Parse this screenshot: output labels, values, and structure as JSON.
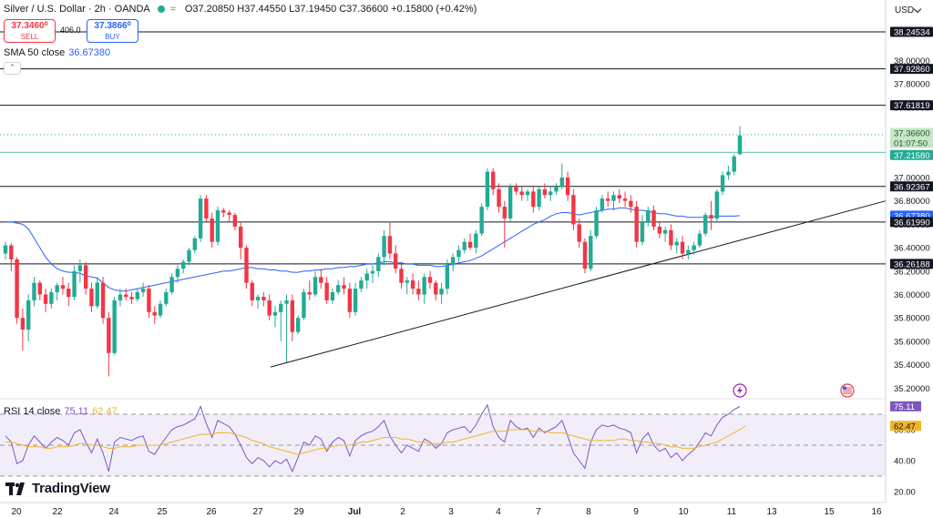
{
  "header": {
    "symbol": "Silver / U.S. Dollar · 2h · OANDA",
    "wave_icon": "≈",
    "ohlc": "O37.20850 H37.44550 L37.19450 C37.36600 +0.15800 (+0.42%)"
  },
  "trade": {
    "sell_price": "37.3460⁰",
    "sell_label": "SELL",
    "spread": "406.0",
    "buy_price": "37.3866⁰",
    "buy_label": "BUY"
  },
  "sma": {
    "label": "SMA 50 close",
    "value": "36.67380"
  },
  "rsi": {
    "label": "RSI 14 close",
    "value": "75.11",
    "ma_value": "62.47"
  },
  "currency": "USD",
  "brand": "TradingView",
  "colors": {
    "up": "#22ab94",
    "down": "#f23645",
    "sma": "#2962ff",
    "rsi": "#7e57c2",
    "rsi_ma": "#f0b429"
  },
  "chart_data": {
    "type": "candlestick",
    "timeframe": "2h",
    "y_ticks": [
      "38.00000",
      "37.80000",
      "37.60000",
      "37.40000",
      "37.20000",
      "37.00000",
      "36.80000",
      "36.60000",
      "36.40000",
      "36.20000",
      "36.00000",
      "35.80000",
      "35.60000",
      "35.40000",
      "35.20000"
    ],
    "x_ticks": [
      "20",
      "22",
      "24",
      "25",
      "26",
      "27",
      "29",
      "Jul",
      "2",
      "3",
      "4",
      "7",
      "8",
      "9",
      "10",
      "11",
      "13",
      "15",
      "16"
    ],
    "horizontal_levels": [
      38.24534,
      37.9286,
      37.61819,
      36.92367,
      36.6199,
      36.26188
    ],
    "price_labels": [
      {
        "text": "38.24534",
        "kind": "level"
      },
      {
        "text": "37.92860",
        "kind": "level"
      },
      {
        "text": "37.61819",
        "kind": "level"
      },
      {
        "text": "37.36600",
        "kind": "current"
      },
      {
        "text": "01:07:50",
        "kind": "countdown"
      },
      {
        "text": "37.21580",
        "kind": "green"
      },
      {
        "text": "36.92367",
        "kind": "level"
      },
      {
        "text": "36.67380",
        "kind": "sma"
      },
      {
        "text": "36.61990",
        "kind": "level"
      },
      {
        "text": "36.26188",
        "kind": "level"
      }
    ],
    "current_price": 37.366,
    "green_line": 37.2158,
    "trendline": {
      "from": 35.38,
      "to": 36.8
    },
    "candles": [
      [
        36.35,
        36.45,
        36.3,
        36.42
      ],
      [
        36.42,
        36.44,
        36.2,
        36.3
      ],
      [
        36.3,
        36.32,
        35.75,
        35.8
      ],
      [
        35.8,
        35.88,
        35.52,
        35.7
      ],
      [
        35.7,
        36.0,
        35.6,
        35.95
      ],
      [
        35.95,
        36.15,
        35.9,
        36.1
      ],
      [
        36.1,
        36.12,
        35.95,
        36.0
      ],
      [
        36.0,
        36.05,
        35.85,
        35.92
      ],
      [
        35.92,
        36.05,
        35.88,
        36.02
      ],
      [
        36.02,
        36.1,
        35.95,
        36.08
      ],
      [
        36.08,
        36.15,
        36.0,
        36.05
      ],
      [
        36.05,
        36.1,
        35.9,
        35.98
      ],
      [
        35.98,
        36.25,
        35.95,
        36.2
      ],
      [
        36.2,
        36.3,
        36.1,
        36.25
      ],
      [
        36.25,
        36.28,
        36.0,
        36.05
      ],
      [
        36.05,
        36.1,
        35.85,
        35.9
      ],
      [
        35.9,
        36.15,
        35.88,
        36.1
      ],
      [
        36.1,
        36.15,
        35.75,
        35.8
      ],
      [
        35.8,
        35.85,
        35.3,
        35.5
      ],
      [
        35.5,
        35.98,
        35.48,
        35.95
      ],
      [
        35.95,
        36.05,
        35.9,
        36.0
      ],
      [
        36.0,
        36.05,
        35.95,
        35.98
      ],
      [
        35.98,
        36.02,
        35.92,
        35.96
      ],
      [
        35.96,
        36.05,
        35.94,
        36.02
      ],
      [
        36.02,
        36.1,
        35.98,
        36.05
      ],
      [
        36.05,
        36.08,
        35.8,
        35.85
      ],
      [
        35.85,
        35.9,
        35.75,
        35.82
      ],
      [
        35.82,
        35.95,
        35.8,
        35.92
      ],
      [
        35.92,
        36.05,
        35.9,
        36.02
      ],
      [
        36.02,
        36.18,
        36.0,
        36.15
      ],
      [
        36.15,
        36.25,
        36.1,
        36.22
      ],
      [
        36.22,
        36.3,
        36.18,
        36.28
      ],
      [
        36.28,
        36.4,
        36.25,
        36.38
      ],
      [
        36.38,
        36.5,
        36.35,
        36.48
      ],
      [
        36.48,
        36.85,
        36.45,
        36.82
      ],
      [
        36.82,
        36.85,
        36.62,
        36.65
      ],
      [
        36.65,
        36.7,
        36.4,
        36.45
      ],
      [
        36.45,
        36.75,
        36.42,
        36.72
      ],
      [
        36.72,
        36.74,
        36.66,
        36.7
      ],
      [
        36.7,
        36.72,
        36.62,
        36.68
      ],
      [
        36.68,
        36.7,
        36.55,
        36.58
      ],
      [
        36.58,
        36.62,
        36.3,
        36.4
      ],
      [
        36.4,
        36.42,
        36.05,
        36.1
      ],
      [
        36.1,
        36.12,
        35.9,
        35.95
      ],
      [
        35.95,
        36.0,
        35.88,
        35.98
      ],
      [
        35.98,
        36.02,
        35.9,
        35.95
      ],
      [
        35.95,
        36.0,
        35.78,
        35.82
      ],
      [
        35.82,
        35.9,
        35.72,
        35.85
      ],
      [
        35.85,
        35.95,
        35.6,
        35.92
      ],
      [
        35.92,
        36.0,
        35.42,
        35.95
      ],
      [
        35.95,
        36.0,
        35.6,
        35.68
      ],
      [
        35.68,
        35.82,
        35.66,
        35.8
      ],
      [
        35.8,
        36.05,
        35.78,
        36.02
      ],
      [
        36.02,
        36.12,
        35.95,
        36.0
      ],
      [
        36.0,
        36.2,
        35.98,
        36.15
      ],
      [
        36.15,
        36.22,
        36.05,
        36.1
      ],
      [
        36.1,
        36.15,
        35.92,
        35.95
      ],
      [
        35.95,
        36.05,
        35.92,
        36.02
      ],
      [
        36.02,
        36.12,
        36.0,
        36.08
      ],
      [
        36.08,
        36.15,
        36.0,
        36.05
      ],
      [
        36.05,
        36.1,
        35.8,
        35.85
      ],
      [
        35.85,
        36.1,
        35.82,
        36.05
      ],
      [
        36.05,
        36.15,
        36.02,
        36.12
      ],
      [
        36.12,
        36.22,
        36.05,
        36.18
      ],
      [
        36.18,
        36.25,
        36.1,
        36.2
      ],
      [
        36.2,
        36.35,
        36.15,
        36.32
      ],
      [
        36.32,
        36.55,
        36.25,
        36.5
      ],
      [
        36.5,
        36.62,
        36.3,
        36.35
      ],
      [
        36.35,
        36.42,
        36.18,
        36.22
      ],
      [
        36.22,
        36.28,
        36.05,
        36.1
      ],
      [
        36.1,
        36.15,
        36.0,
        36.12
      ],
      [
        36.12,
        36.18,
        36.0,
        36.05
      ],
      [
        36.05,
        36.12,
        35.95,
        36.0
      ],
      [
        36.0,
        36.18,
        35.92,
        36.15
      ],
      [
        36.15,
        36.2,
        36.05,
        36.1
      ],
      [
        36.1,
        36.12,
        35.95,
        36.0
      ],
      [
        36.0,
        36.1,
        35.92,
        36.05
      ],
      [
        36.05,
        36.3,
        36.0,
        36.25
      ],
      [
        36.25,
        36.35,
        36.2,
        36.32
      ],
      [
        36.32,
        36.42,
        36.28,
        36.38
      ],
      [
        36.38,
        36.48,
        36.35,
        36.45
      ],
      [
        36.45,
        36.52,
        36.38,
        36.4
      ],
      [
        36.4,
        36.55,
        36.35,
        36.52
      ],
      [
        36.52,
        36.78,
        36.5,
        36.75
      ],
      [
        36.75,
        37.08,
        36.72,
        37.05
      ],
      [
        37.05,
        37.08,
        36.85,
        36.9
      ],
      [
        36.9,
        36.95,
        36.7,
        36.75
      ],
      [
        36.75,
        36.8,
        36.4,
        36.65
      ],
      [
        36.65,
        36.95,
        36.62,
        36.92
      ],
      [
        36.92,
        36.95,
        36.85,
        36.88
      ],
      [
        36.88,
        36.92,
        36.8,
        36.85
      ],
      [
        36.85,
        36.9,
        36.8,
        36.88
      ],
      [
        36.88,
        36.92,
        36.7,
        36.75
      ],
      [
        36.75,
        36.92,
        36.72,
        36.9
      ],
      [
        36.9,
        36.95,
        36.82,
        36.85
      ],
      [
        36.85,
        36.92,
        36.8,
        36.88
      ],
      [
        36.88,
        36.95,
        36.85,
        36.92
      ],
      [
        36.92,
        37.12,
        36.9,
        37.0
      ],
      [
        37.0,
        37.05,
        36.8,
        36.85
      ],
      [
        36.85,
        36.9,
        36.55,
        36.6
      ],
      [
        36.6,
        36.65,
        36.4,
        36.45
      ],
      [
        36.45,
        36.48,
        36.18,
        36.22
      ],
      [
        36.22,
        36.55,
        36.2,
        36.5
      ],
      [
        36.5,
        36.75,
        36.48,
        36.72
      ],
      [
        36.72,
        36.85,
        36.7,
        36.82
      ],
      [
        36.82,
        36.88,
        36.75,
        36.8
      ],
      [
        36.8,
        36.88,
        36.72,
        36.85
      ],
      [
        36.85,
        36.9,
        36.78,
        36.82
      ],
      [
        36.82,
        36.88,
        36.75,
        36.8
      ],
      [
        36.8,
        36.85,
        36.7,
        36.75
      ],
      [
        36.75,
        36.8,
        36.4,
        36.45
      ],
      [
        36.45,
        36.68,
        36.42,
        36.62
      ],
      [
        36.62,
        36.75,
        36.58,
        36.72
      ],
      [
        36.72,
        36.76,
        36.55,
        36.58
      ],
      [
        36.58,
        36.62,
        36.48,
        36.52
      ],
      [
        36.52,
        36.58,
        36.45,
        36.55
      ],
      [
        36.55,
        36.6,
        36.38,
        36.42
      ],
      [
        36.42,
        36.48,
        36.35,
        36.45
      ],
      [
        36.45,
        36.5,
        36.3,
        36.35
      ],
      [
        36.35,
        36.42,
        36.3,
        36.38
      ],
      [
        36.38,
        36.45,
        36.34,
        36.42
      ],
      [
        36.42,
        36.55,
        36.4,
        36.52
      ],
      [
        36.52,
        36.7,
        36.5,
        36.68
      ],
      [
        36.68,
        36.8,
        36.55,
        36.65
      ],
      [
        36.65,
        36.9,
        36.62,
        36.88
      ],
      [
        36.88,
        37.05,
        36.85,
        37.02
      ],
      [
        37.02,
        37.1,
        36.98,
        37.05
      ],
      [
        37.05,
        37.2,
        37.02,
        37.18
      ],
      [
        37.2,
        37.44,
        37.19,
        37.36
      ]
    ],
    "sma50": [
      36.62,
      36.62,
      36.61,
      36.6,
      36.56,
      36.48,
      36.4,
      36.32,
      36.26,
      36.22,
      36.2,
      36.19,
      36.19,
      36.18,
      36.16,
      36.15,
      36.14,
      36.1,
      36.06,
      36.04,
      36.03,
      36.03,
      36.04,
      36.05,
      36.06,
      36.07,
      36.08,
      36.09,
      36.1,
      36.11,
      36.12,
      36.13,
      36.14,
      36.15,
      36.16,
      36.17,
      36.18,
      36.19,
      36.2,
      36.2,
      36.21,
      36.22,
      36.23,
      36.23,
      36.22,
      36.22,
      36.21,
      36.21,
      36.2,
      36.2,
      36.19,
      36.19,
      36.2,
      36.2,
      36.21,
      36.21,
      36.22,
      36.22,
      36.23,
      36.23,
      36.24,
      36.24,
      36.25,
      36.26,
      36.26,
      36.27,
      36.28,
      36.28,
      36.27,
      36.27,
      36.26,
      36.26,
      36.25,
      36.25,
      36.25,
      36.24,
      36.24,
      36.25,
      36.26,
      36.27,
      36.28,
      36.29,
      36.31,
      36.33,
      36.36,
      36.39,
      36.42,
      36.45,
      36.48,
      36.51,
      36.54,
      36.57,
      36.6,
      36.62,
      36.64,
      36.67,
      36.69,
      36.7,
      36.7,
      36.69,
      36.68,
      36.69,
      36.7,
      36.71,
      36.72,
      36.73,
      36.73,
      36.74,
      36.74,
      36.73,
      36.72,
      36.72,
      36.71,
      36.7,
      36.69,
      36.69,
      36.68,
      36.67,
      36.67,
      36.66,
      36.66,
      36.66,
      36.66,
      36.66,
      36.67,
      36.67,
      36.67,
      36.67,
      36.674
    ],
    "rsi14": [
      56,
      52,
      38,
      40,
      50,
      56,
      52,
      48,
      52,
      55,
      53,
      50,
      58,
      60,
      52,
      45,
      54,
      45,
      33,
      52,
      55,
      54,
      53,
      55,
      56,
      46,
      44,
      50,
      55,
      60,
      62,
      63,
      65,
      67,
      75,
      64,
      55,
      66,
      64,
      62,
      57,
      50,
      42,
      38,
      42,
      40,
      36,
      40,
      38,
      41,
      33,
      42,
      52,
      50,
      56,
      54,
      46,
      52,
      55,
      53,
      43,
      53,
      56,
      58,
      59,
      62,
      66,
      56,
      50,
      45,
      50,
      48,
      46,
      54,
      52,
      48,
      51,
      58,
      60,
      61,
      62,
      58,
      63,
      70,
      76,
      62,
      55,
      52,
      66,
      62,
      60,
      61,
      55,
      61,
      58,
      60,
      62,
      66,
      56,
      45,
      40,
      35,
      52,
      60,
      63,
      62,
      63,
      61,
      60,
      58,
      45,
      54,
      58,
      50,
      46,
      48,
      42,
      45,
      40,
      44,
      47,
      52,
      58,
      56,
      63,
      68,
      70,
      73,
      75
    ],
    "rsi_ma": [
      52,
      52,
      51,
      50,
      49,
      49,
      49,
      48,
      48,
      49,
      49,
      49,
      50,
      51,
      51,
      50,
      50,
      49,
      48,
      48,
      49,
      49,
      49,
      50,
      50,
      50,
      50,
      50,
      51,
      52,
      53,
      54,
      55,
      56,
      57,
      57,
      57,
      58,
      58,
      58,
      57,
      56,
      55,
      53,
      52,
      51,
      49,
      48,
      47,
      46,
      45,
      44,
      45,
      46,
      47,
      48,
      48,
      49,
      50,
      50,
      50,
      51,
      52,
      52,
      53,
      54,
      55,
      55,
      55,
      54,
      54,
      53,
      52,
      52,
      51,
      51,
      51,
      52,
      52,
      53,
      54,
      55,
      56,
      57,
      58,
      59,
      59,
      59,
      60,
      60,
      60,
      60,
      59,
      59,
      59,
      58,
      58,
      58,
      57,
      56,
      55,
      54,
      53,
      53,
      53,
      53,
      53,
      54,
      54,
      53,
      53,
      52,
      52,
      51,
      51,
      50,
      49,
      49,
      48,
      48,
      48,
      49,
      50,
      51,
      52,
      54,
      56,
      58,
      60,
      62.47
    ],
    "rsi_ticks": [
      "60.00",
      "40.00",
      "20.00"
    ],
    "rsi_bands": [
      70,
      50,
      30
    ],
    "rsi_labels": [
      "75.11",
      "62.47"
    ]
  }
}
